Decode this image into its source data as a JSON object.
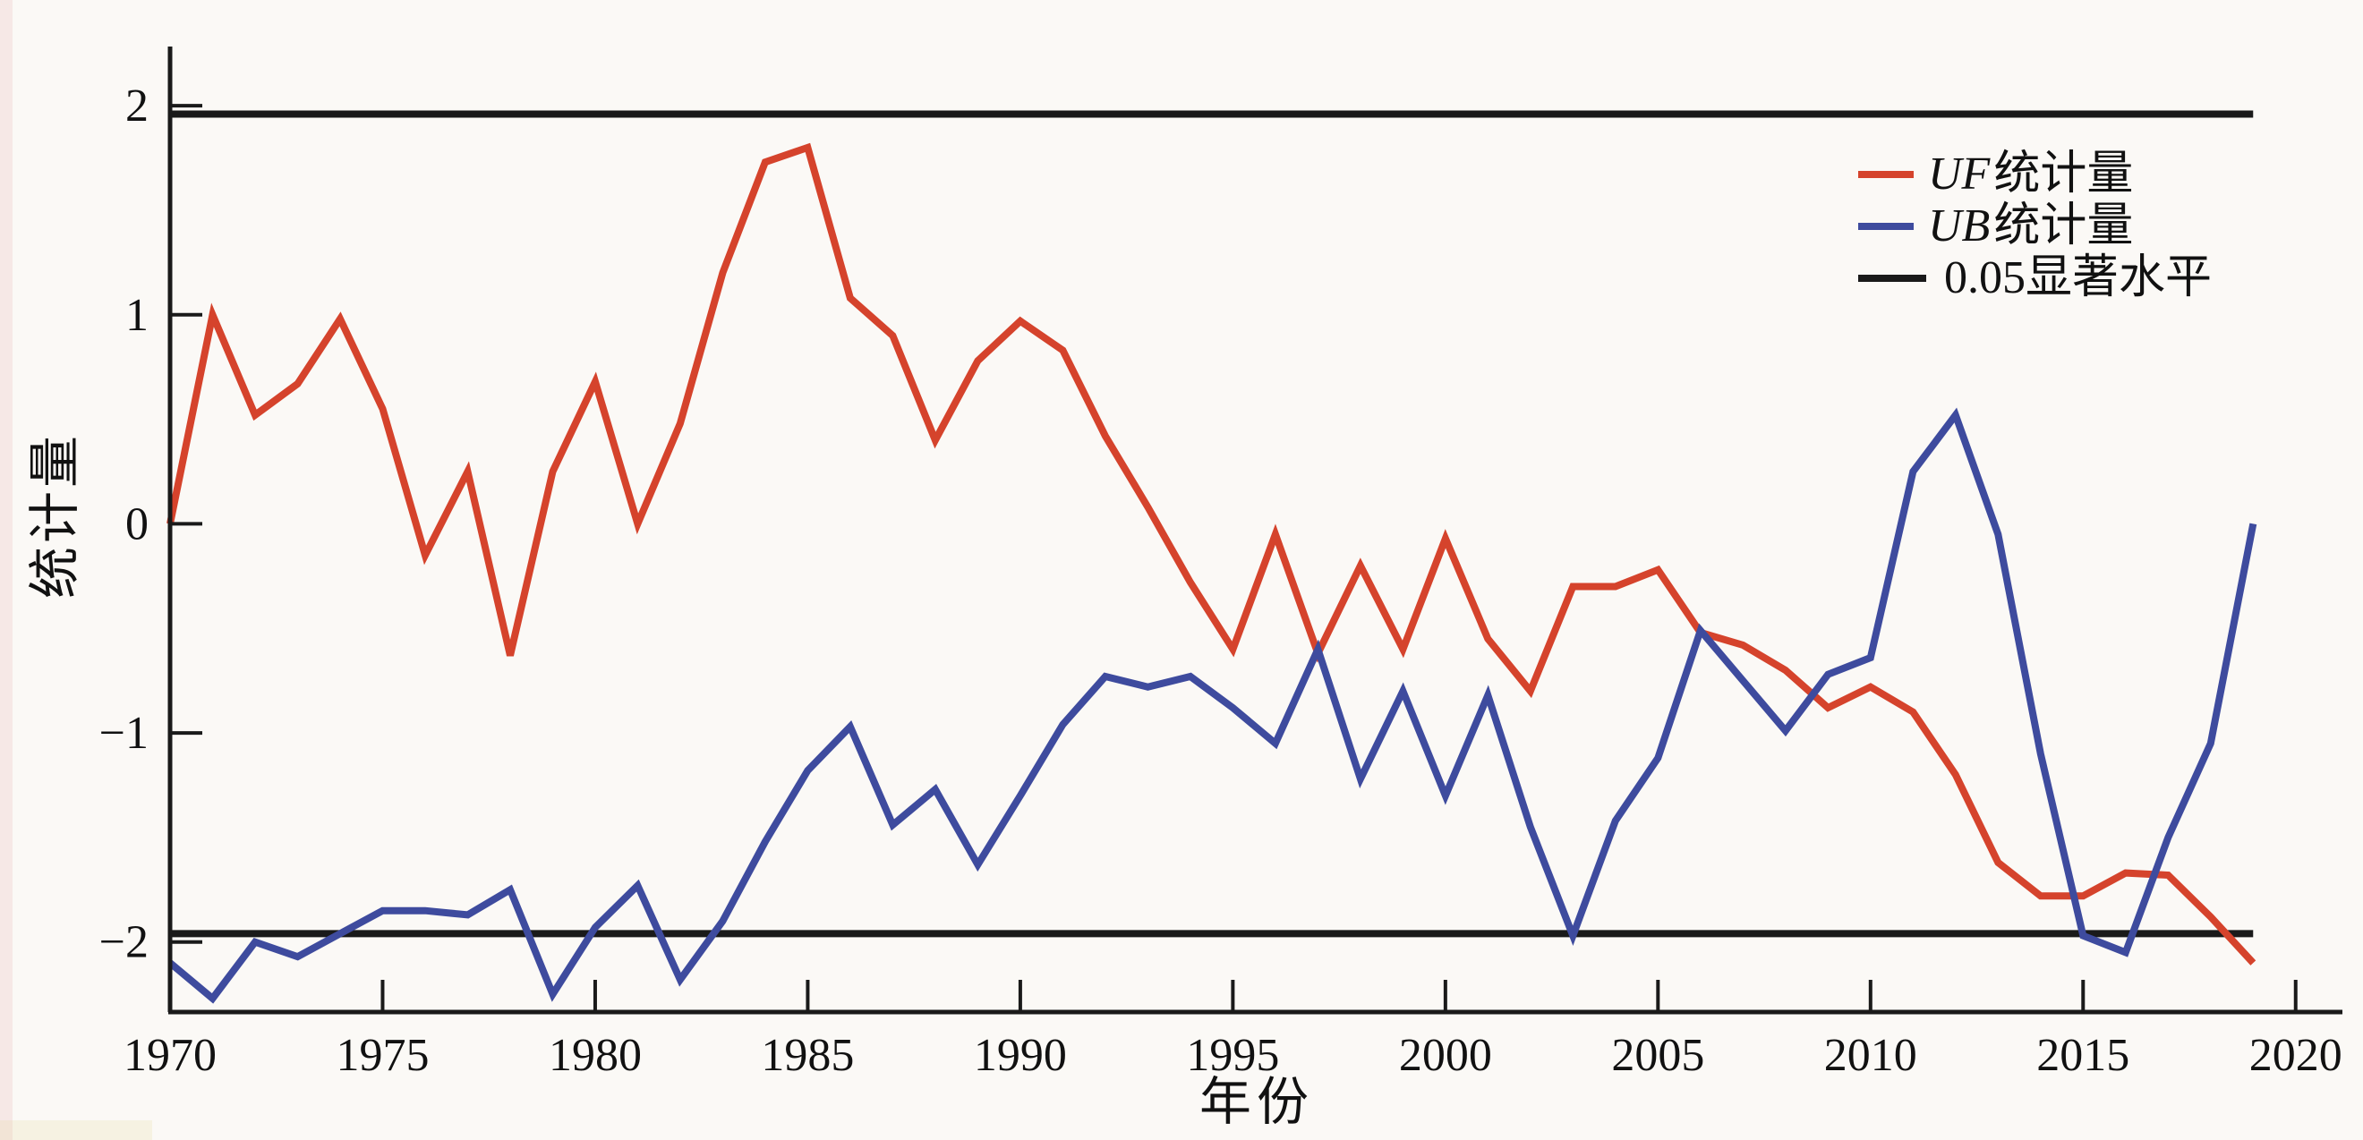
{
  "chart_data": {
    "type": "line",
    "title": "",
    "xlabel": "年份",
    "ylabel": "统计量",
    "grid": false,
    "legend_position": "upper right",
    "xlim": [
      1970,
      2021.1
    ],
    "ylim": [
      -2.335,
      2.283
    ],
    "x_ticks": [
      1970,
      1975,
      1980,
      1985,
      1990,
      1995,
      2000,
      2005,
      2010,
      2015,
      2020
    ],
    "y_ticks": [
      -2,
      -1,
      0,
      1,
      2
    ],
    "colors": {
      "uf": "#d5432c",
      "ub": "#3e4b9e",
      "sig": "#1a1a1a"
    },
    "x": [
      1970,
      1971,
      1972,
      1973,
      1974,
      1975,
      1976,
      1977,
      1978,
      1979,
      1980,
      1981,
      1982,
      1983,
      1984,
      1985,
      1986,
      1987,
      1988,
      1989,
      1990,
      1991,
      1992,
      1993,
      1994,
      1995,
      1996,
      1997,
      1998,
      1999,
      2000,
      2001,
      2002,
      2003,
      2004,
      2005,
      2006,
      2007,
      2008,
      2009,
      2010,
      2011,
      2012,
      2013,
      2014,
      2015,
      2016,
      2017,
      2018,
      2019
    ],
    "series": [
      {
        "id": "uf",
        "name": "UF统计量",
        "color": "#d5432c",
        "values": [
          0,
          1.0,
          0.52,
          0.67,
          0.98,
          0.55,
          -0.15,
          0.25,
          -0.63,
          0.25,
          0.68,
          0,
          0.48,
          1.2,
          1.73,
          1.8,
          1.08,
          0.9,
          0.4,
          0.78,
          0.97,
          0.83,
          0.42,
          0.08,
          -0.28,
          -0.6,
          -0.05,
          -0.62,
          -0.2,
          -0.6,
          -0.07,
          -0.55,
          -0.8,
          -0.3,
          -0.3,
          -0.22,
          -0.52,
          -0.58,
          -0.7,
          -0.88,
          -0.78,
          -0.9,
          -1.2,
          -1.62,
          -1.78,
          -1.78,
          -1.67,
          -1.68,
          -1.88,
          -2.1
        ]
      },
      {
        "id": "ub",
        "name": "UB统计量",
        "color": "#3e4b9e",
        "values": [
          -2.1,
          -2.27,
          -2.0,
          -2.07,
          -1.96,
          -1.85,
          -1.85,
          -1.87,
          -1.75,
          -2.25,
          -1.93,
          -1.73,
          -2.18,
          -1.9,
          -1.52,
          -1.18,
          -0.97,
          -1.44,
          -1.27,
          -1.63,
          -1.3,
          -0.96,
          -0.73,
          -0.78,
          -0.73,
          -0.88,
          -1.05,
          -0.6,
          -1.22,
          -0.8,
          -1.3,
          -0.82,
          -1.45,
          -1.97,
          -1.42,
          -1.12,
          -0.51,
          -0.75,
          -0.99,
          -0.72,
          -0.64,
          0.25,
          0.52,
          -0.05,
          -1.1,
          -1.97,
          -2.05,
          -1.5,
          -1.05,
          0
        ]
      }
    ],
    "significance": {
      "label": "0.05显著水平",
      "values": [
        1.96,
        -1.96
      ],
      "color": "#1a1a1a"
    }
  },
  "legend": {
    "items": [
      {
        "italic": "UF",
        "rest": "统计量",
        "color_key": "uf"
      },
      {
        "italic": "UB",
        "rest": "统计量",
        "color_key": "ub"
      },
      {
        "italic": "",
        "rest": "0.05显著水平",
        "color_key": "sig"
      }
    ]
  }
}
